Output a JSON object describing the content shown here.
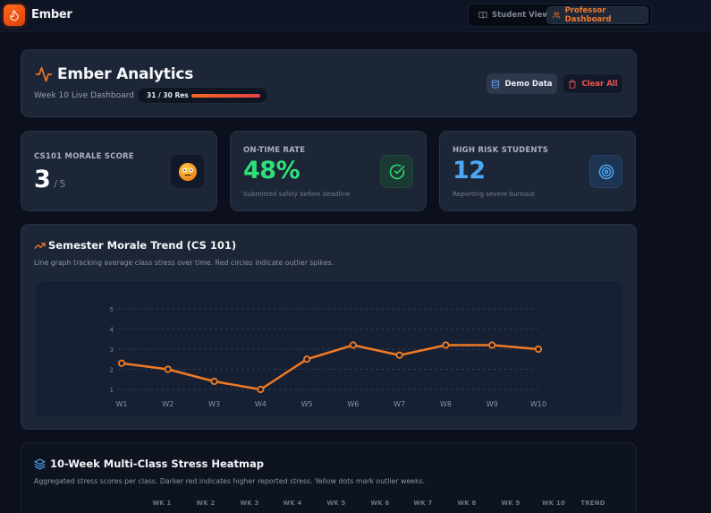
{
  "app": {
    "brand": "Ember",
    "view_toggle": {
      "student_label": "Student View",
      "professor_label": "Professor Dashboard",
      "active": "Professor Dashboard"
    }
  },
  "hero": {
    "title": "Ember Analytics",
    "subtitle": "Week 10 Live Dashboard",
    "responses_label": "31 / 30 Res",
    "responses_progress_pct": 100,
    "demo_button": "Demo Data",
    "clear_button": "Clear All"
  },
  "stats": [
    {
      "label": "CS101 MORALE SCORE",
      "value": "3",
      "unit": "/ 5",
      "icon": "neutral-face-emoji",
      "subtitle": ""
    },
    {
      "label": "ON-TIME RATE",
      "value": "48%",
      "subtitle": "Submitted safely before deadline",
      "icon": "check-circle-icon"
    },
    {
      "label": "HIGH RISK STUDENTS",
      "value": "12",
      "subtitle": "Reporting severe burnout",
      "icon": "target-icon"
    }
  ],
  "trend": {
    "title": "Semester Morale Trend (CS 101)",
    "description": "Line graph tracking average class stress over time. Red circles indicate outlier spikes."
  },
  "chart_data": {
    "type": "line",
    "title": "Semester Morale Trend (CS 101)",
    "xlabel": "",
    "ylabel": "",
    "categories": [
      "W1",
      "W2",
      "W3",
      "W4",
      "W5",
      "W6",
      "W7",
      "W8",
      "W9",
      "W10"
    ],
    "series": [
      {
        "name": "Average class stress",
        "values": [
          2.3,
          2.0,
          1.4,
          1.0,
          2.5,
          3.2,
          2.7,
          3.2,
          3.2,
          3.0
        ],
        "color": "#f07b24"
      }
    ],
    "y_ticks": [
      1,
      2,
      3,
      4,
      5
    ],
    "ylim": [
      1,
      5
    ],
    "grid": true,
    "legend": "none"
  },
  "heatmap": {
    "title": "10-Week Multi-Class Stress Heatmap",
    "description": "Aggregated stress scores per class. Darker red indicates higher reported stress. Yellow dots mark outlier weeks.",
    "columns": [
      "WK 1",
      "WK 2",
      "WK 3",
      "WK 4",
      "WK 5",
      "WK 6",
      "WK 7",
      "WK 8",
      "WK 9",
      "WK 10",
      "TREND"
    ]
  },
  "colors": {
    "accent": "#f2772b",
    "success": "#2ee07a",
    "info": "#4ca7f5",
    "danger": "#ef5454",
    "background": "#0b101c",
    "panel": "#1d2636"
  }
}
